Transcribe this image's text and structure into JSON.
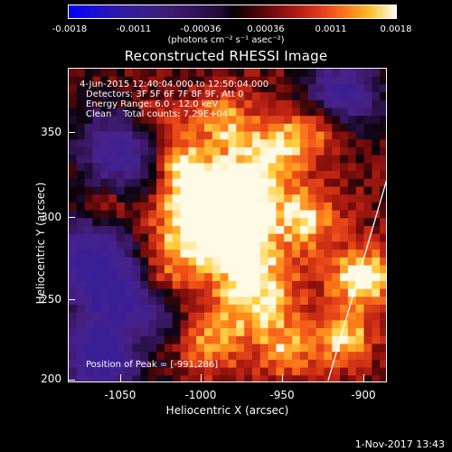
{
  "colorbar": {
    "ticks": [
      "-0.0018",
      "-0.0011",
      "-0.00036",
      "0.00036",
      "0.0011",
      "0.0018"
    ],
    "unit_label": "(photons cm⁻² s⁻¹ asec⁻²)"
  },
  "title": "Reconstructed RHESSI Image",
  "info": {
    "time_range": "4-Jun-2015 12:40:04.000 to 12:50:04.000",
    "detectors": "Detectors: 3F 5F 6F 7F 8F 9F, Att 0",
    "energy": "Energy Range: 6.0 - 12.0 keV",
    "clean": "Clean    Total counts: 7.29E+04",
    "peak": "Position of Peak = [-991,286]"
  },
  "axes": {
    "x_label": "Heliocentric X (arcsec)",
    "y_label": "Heliocentric Y (arcsec)",
    "x_ticks": [
      "-1050",
      "-1000",
      "-950",
      "-900"
    ],
    "y_ticks": [
      "350",
      "300",
      "250",
      "200"
    ]
  },
  "timestamp": "1-Nov-2017 13:43",
  "colors": {
    "background": "#000000",
    "limb_line": "#ffffff"
  }
}
